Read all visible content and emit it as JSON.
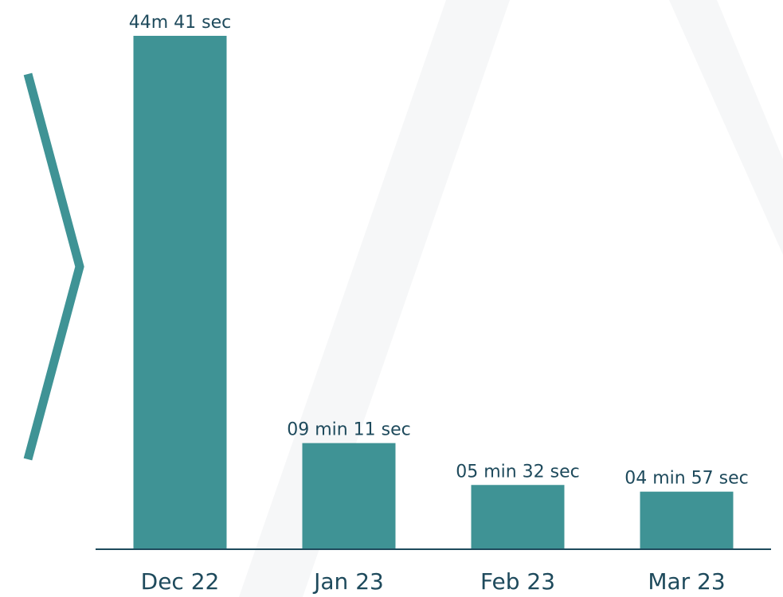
{
  "chart_data": {
    "type": "bar",
    "categories": [
      "Dec 22",
      "Jan 23",
      "Feb 23",
      "Mar 23"
    ],
    "values": [
      2681,
      551,
      332,
      297
    ],
    "value_labels": [
      "44m 41 sec",
      "09 min 11 sec",
      "05 min 32 sec",
      "04 min 57 sec"
    ],
    "color": "#3f9395"
  }
}
